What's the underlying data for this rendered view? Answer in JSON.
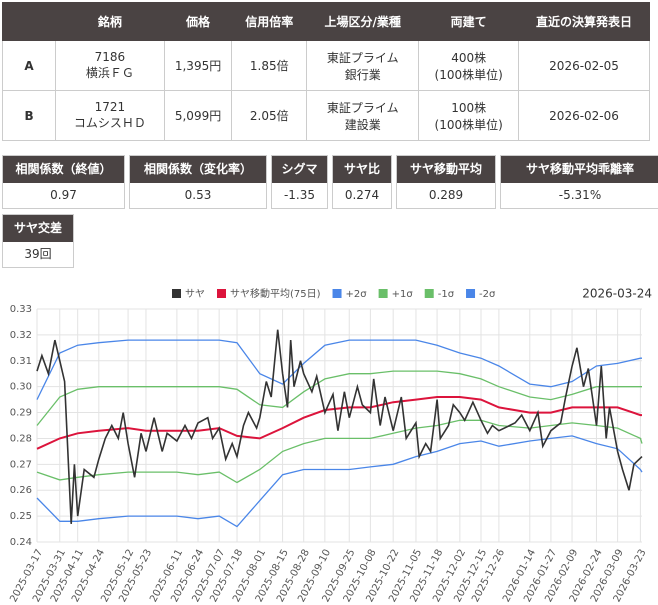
{
  "table": {
    "headers": [
      "銘柄",
      "価格",
      "信用倍率",
      "上場区分/業種",
      "両建て",
      "直近の決算発表日"
    ],
    "rows": [
      [
        "A",
        [
          "7186",
          "横浜ＦＧ"
        ],
        "1,395円",
        "1.85倍",
        [
          "東証プライム",
          "銀行業"
        ],
        [
          "400株",
          "(100株単位)"
        ],
        "2026-02-05"
      ],
      [
        "B",
        [
          "1721",
          "コムシスＨＤ"
        ],
        "5,099円",
        "2.05倍",
        [
          "東証プライム",
          "建設業"
        ],
        [
          "100株",
          "(100株単位)"
        ],
        "2026-02-06"
      ]
    ]
  },
  "stats": [
    [
      {
        "label": "相関係数（終値）",
        "value": "0.97"
      },
      {
        "label": "相関係数（変化率）",
        "value": "0.53"
      },
      {
        "label": "シグマ",
        "value": "-1.35"
      },
      {
        "label": "サヤ比",
        "value": "0.274"
      },
      {
        "label": "サヤ移動平均",
        "value": "0.289"
      },
      {
        "label": "サヤ移動平均乖離率",
        "value": "-5.31%"
      }
    ],
    [
      {
        "label": "サヤ交差",
        "value": "39回"
      }
    ]
  ],
  "chart_data": {
    "type": "line",
    "subtitle": "2026-03-24",
    "grid": true,
    "xlim": [
      "2025-03-17",
      "2026-03-24"
    ],
    "xticks": [
      "2025-03-17",
      "2025-03-31",
      "2025-04-11",
      "2025-04-24",
      "2025-05-12",
      "2025-05-23",
      "2025-06-11",
      "2025-06-24",
      "2025-07-07",
      "2025-07-18",
      "2025-08-01",
      "2025-08-15",
      "2025-08-28",
      "2025-09-10",
      "2025-09-25",
      "2025-10-08",
      "2025-10-22",
      "2025-11-05",
      "2025-11-18",
      "2025-12-02",
      "2025-12-15",
      "2025-12-26",
      "2026-01-14",
      "2026-01-27",
      "2026-02-09",
      "2026-02-24",
      "2026-03-09",
      "2026-03-23"
    ],
    "ylim": [
      0.24,
      0.33
    ],
    "yticks": [
      0.24,
      0.25,
      0.26,
      0.27,
      0.28,
      0.29,
      {
        "value": 0.3,
        "label": "0.30"
      },
      0.31,
      0.32,
      0.33
    ],
    "x": [
      "2025-03-17",
      "2025-03-31",
      "2025-04-11",
      "2025-04-24",
      "2025-05-12",
      "2025-05-23",
      "2025-06-11",
      "2025-06-24",
      "2025-07-07",
      "2025-07-18",
      "2025-08-01",
      "2025-08-15",
      "2025-08-28",
      "2025-09-10",
      "2025-09-25",
      "2025-10-08",
      "2025-10-22",
      "2025-11-05",
      "2025-11-18",
      "2025-12-02",
      "2025-12-15",
      "2025-12-26",
      "2026-01-14",
      "2026-01-27",
      "2026-02-09",
      "2026-02-24",
      "2026-03-09",
      "2026-03-23",
      "2026-03-24"
    ],
    "series": [
      {
        "name": "サヤ",
        "color": "#333333",
        "x": [
          "2025-03-17",
          "2025-03-20",
          "2025-03-24",
          "2025-03-28",
          "2025-03-31",
          "2025-04-03",
          "2025-04-07",
          "2025-04-09",
          "2025-04-11",
          "2025-04-15",
          "2025-04-21",
          "2025-04-24",
          "2025-04-28",
          "2025-05-02",
          "2025-05-06",
          "2025-05-09",
          "2025-05-12",
          "2025-05-16",
          "2025-05-20",
          "2025-05-23",
          "2025-05-28",
          "2025-06-02",
          "2025-06-05",
          "2025-06-11",
          "2025-06-16",
          "2025-06-20",
          "2025-06-24",
          "2025-06-30",
          "2025-07-03",
          "2025-07-07",
          "2025-07-11",
          "2025-07-15",
          "2025-07-18",
          "2025-07-22",
          "2025-07-25",
          "2025-07-30",
          "2025-08-01",
          "2025-08-05",
          "2025-08-08",
          "2025-08-12",
          "2025-08-15",
          "2025-08-18",
          "2025-08-20",
          "2025-08-22",
          "2025-08-26",
          "2025-08-28",
          "2025-09-02",
          "2025-09-05",
          "2025-09-10",
          "2025-09-15",
          "2025-09-18",
          "2025-09-22",
          "2025-09-25",
          "2025-09-30",
          "2025-10-03",
          "2025-10-08",
          "2025-10-10",
          "2025-10-14",
          "2025-10-17",
          "2025-10-22",
          "2025-10-27",
          "2025-10-30",
          "2025-11-05",
          "2025-11-07",
          "2025-11-11",
          "2025-11-14",
          "2025-11-18",
          "2025-11-20",
          "2025-11-25",
          "2025-11-28",
          "2025-12-02",
          "2025-12-05",
          "2025-12-10",
          "2025-12-15",
          "2025-12-19",
          "2025-12-22",
          "2025-12-26",
          "2026-01-05",
          "2026-01-09",
          "2026-01-14",
          "2026-01-19",
          "2026-01-22",
          "2026-01-27",
          "2026-02-02",
          "2026-02-05",
          "2026-02-09",
          "2026-02-12",
          "2026-02-16",
          "2026-02-19",
          "2026-02-24",
          "2026-02-27",
          "2026-03-02",
          "2026-03-04",
          "2026-03-09",
          "2026-03-12",
          "2026-03-16",
          "2026-03-19",
          "2026-03-24"
        ],
        "values": [
          0.306,
          0.312,
          0.305,
          0.318,
          0.31,
          0.302,
          0.247,
          0.27,
          0.25,
          0.268,
          0.265,
          0.272,
          0.28,
          0.285,
          0.28,
          0.29,
          0.278,
          0.265,
          0.282,
          0.275,
          0.288,
          0.275,
          0.282,
          0.279,
          0.285,
          0.28,
          0.286,
          0.288,
          0.28,
          0.284,
          0.272,
          0.278,
          0.273,
          0.285,
          0.29,
          0.284,
          0.288,
          0.302,
          0.296,
          0.322,
          0.305,
          0.292,
          0.318,
          0.3,
          0.31,
          0.305,
          0.298,
          0.304,
          0.29,
          0.297,
          0.283,
          0.298,
          0.288,
          0.3,
          0.293,
          0.29,
          0.303,
          0.285,
          0.296,
          0.283,
          0.296,
          0.28,
          0.286,
          0.273,
          0.278,
          0.275,
          0.295,
          0.28,
          0.285,
          0.293,
          0.29,
          0.287,
          0.294,
          0.287,
          0.282,
          0.285,
          0.283,
          0.286,
          0.289,
          0.283,
          0.29,
          0.277,
          0.283,
          0.286,
          0.296,
          0.308,
          0.315,
          0.3,
          0.307,
          0.285,
          0.308,
          0.28,
          0.292,
          0.275,
          0.268,
          0.26,
          0.27,
          0.273
        ]
      },
      {
        "name": "サヤ移動平均(75日)",
        "color": "#dc143c",
        "values": [
          0.276,
          0.28,
          0.282,
          0.283,
          0.284,
          0.283,
          0.283,
          0.283,
          0.284,
          0.281,
          0.28,
          0.284,
          0.288,
          0.291,
          0.292,
          0.292,
          0.294,
          0.295,
          0.296,
          0.296,
          0.295,
          0.292,
          0.29,
          0.29,
          0.292,
          0.292,
          0.292,
          0.289,
          0.289
        ]
      },
      {
        "name": "+2σ",
        "color": "#4a86e8",
        "values": [
          0.295,
          0.313,
          0.316,
          0.317,
          0.318,
          0.318,
          0.318,
          0.318,
          0.318,
          0.317,
          0.305,
          0.301,
          0.309,
          0.316,
          0.318,
          0.318,
          0.318,
          0.318,
          0.316,
          0.313,
          0.311,
          0.308,
          0.301,
          0.3,
          0.302,
          0.308,
          0.309,
          0.311,
          0.311
        ]
      },
      {
        "name": "+1σ",
        "color": "#6abf69",
        "values": [
          0.285,
          0.296,
          0.299,
          0.3,
          0.3,
          0.3,
          0.3,
          0.3,
          0.3,
          0.299,
          0.293,
          0.292,
          0.298,
          0.303,
          0.305,
          0.305,
          0.306,
          0.306,
          0.306,
          0.305,
          0.303,
          0.3,
          0.296,
          0.295,
          0.297,
          0.3,
          0.3,
          0.3,
          0.3
        ]
      },
      {
        "name": "-1σ",
        "color": "#6abf69",
        "values": [
          0.267,
          0.264,
          0.265,
          0.266,
          0.267,
          0.267,
          0.267,
          0.266,
          0.267,
          0.263,
          0.268,
          0.275,
          0.278,
          0.28,
          0.28,
          0.28,
          0.282,
          0.284,
          0.285,
          0.287,
          0.287,
          0.285,
          0.284,
          0.285,
          0.286,
          0.285,
          0.284,
          0.28,
          0.278
        ]
      },
      {
        "name": "-2σ",
        "color": "#4a86e8",
        "values": [
          0.257,
          0.248,
          0.248,
          0.249,
          0.25,
          0.25,
          0.25,
          0.249,
          0.25,
          0.246,
          0.256,
          0.266,
          0.268,
          0.268,
          0.268,
          0.269,
          0.27,
          0.273,
          0.275,
          0.278,
          0.279,
          0.277,
          0.279,
          0.28,
          0.281,
          0.278,
          0.276,
          0.268,
          0.267
        ]
      }
    ]
  }
}
